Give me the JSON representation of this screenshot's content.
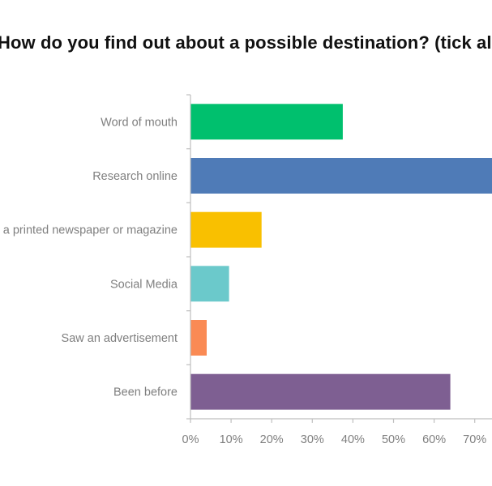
{
  "chart_data": {
    "type": "bar",
    "orientation": "horizontal",
    "title": "How do you find out about a possible destination? (tick all that apply)",
    "categories": [
      "Word of mouth",
      "Research online",
      "In a printed newspaper or magazine",
      "Social Media",
      "Saw an advertisement",
      "Been before"
    ],
    "values": [
      37.5,
      76,
      17.5,
      9.5,
      4,
      64
    ],
    "colors": [
      "#00c06e",
      "#4f7bb7",
      "#f9c000",
      "#6bc9cb",
      "#fa8a54",
      "#7e5f92"
    ],
    "xlim": [
      0,
      80
    ],
    "xticks": [
      0,
      10,
      20,
      30,
      40,
      50,
      60,
      70
    ],
    "xtick_labels": [
      "0%",
      "10%",
      "20%",
      "30%",
      "40%",
      "50%",
      "60%",
      "70%"
    ],
    "xlabel": "",
    "ylabel": "",
    "grid": false,
    "axis_color": "#bfbfbf"
  }
}
